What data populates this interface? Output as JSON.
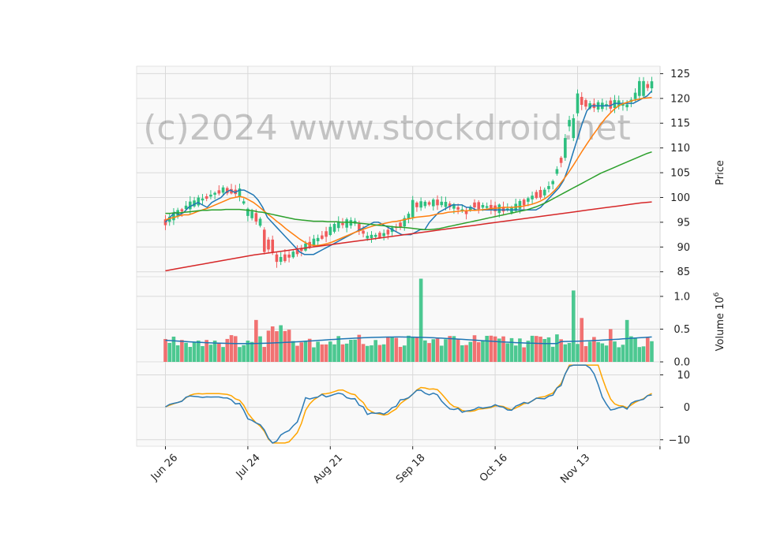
{
  "watermark": "(c)2024 www.stockdroid.net",
  "colors": {
    "up": "#2ebf7f",
    "down": "#f05b5b",
    "ma_short": "#1f77b4",
    "ma_mid": "#ff7f0e",
    "ma_long": "#2ca02c",
    "ma_xlong": "#d62728",
    "vol_ma": "#1f77b4",
    "osc_fast": "#2c7bb6",
    "osc_slow": "#ffa500"
  },
  "chart_data": [
    {
      "type": "candlestick",
      "ylabel": "Price",
      "ylim": [
        84,
        126.5
      ],
      "yticks": [
        85,
        90,
        95,
        100,
        105,
        110,
        115,
        120,
        125
      ],
      "xticks": [
        "Jun 26",
        "Jul 24",
        "Aug 21",
        "Sep 18",
        "Oct 16",
        "Nov 13"
      ],
      "series": [
        {
          "values": [
            95.0,
            96.0,
            97.0,
            96.5,
            97.0,
            98.0,
            98.5,
            99.0,
            98.5,
            98.0,
            99.0,
            99.5,
            100.0,
            101.0,
            101.5,
            101.0,
            101.5,
            101.5,
            101.0,
            100.5,
            99.5,
            98.0,
            96.0,
            95.0,
            94.0,
            93.0,
            92.0,
            91.0,
            90.0,
            89.0,
            88.5,
            88.5,
            88.5,
            89.0,
            89.5,
            90.0,
            90.5,
            91.0,
            91.5,
            92.0,
            92.5,
            93.0,
            93.5,
            94.0,
            94.5,
            95.0,
            95.0,
            94.5,
            94.0,
            93.5,
            93.0,
            92.5,
            92.5,
            92.5,
            93.0,
            93.5,
            93.5,
            95.0,
            96.0,
            97.0,
            97.5,
            98.0,
            98.5,
            98.5,
            98.5,
            98.0,
            98.0,
            97.5,
            97.5,
            97.5,
            97.5,
            97.5,
            97.5,
            97.5,
            97.5,
            97.5,
            97.5,
            97.5,
            97.5,
            97.5,
            97.5,
            98.0,
            99.0,
            100.0,
            101.0,
            102.0,
            103.5,
            106.0,
            109.0,
            112.0,
            115.0,
            117.5,
            118.5,
            118.5,
            118.5,
            118.5,
            118.5,
            119.0,
            119.0,
            119.0,
            119.0,
            119.0,
            119.5,
            120.0,
            120.5,
            121.5
          ]
        },
        {
          "values": [
            95.5,
            95.8,
            96.0,
            96.3,
            96.5,
            96.5,
            96.8,
            97.2,
            97.5,
            97.8,
            98.2,
            98.6,
            99.0,
            99.4,
            99.8,
            100.0,
            100.2,
            100.0,
            99.5,
            99.0,
            98.3,
            97.5,
            96.7,
            96.0,
            95.2,
            94.5,
            93.7,
            93.0,
            92.3,
            91.6,
            91.0,
            90.5,
            90.3,
            90.3,
            90.5,
            90.7,
            91.0,
            91.4,
            91.8,
            92.2,
            92.6,
            93.0,
            93.3,
            93.7,
            94.0,
            94.3,
            94.5,
            94.7,
            94.9,
            95.1,
            95.2,
            95.4,
            95.6,
            95.8,
            96.0,
            96.1,
            96.2,
            96.3,
            96.5,
            96.7,
            96.8,
            97.0,
            97.1,
            97.2,
            97.3,
            97.3,
            97.4,
            97.4,
            97.5,
            97.6,
            97.7,
            97.8,
            97.9,
            98.0,
            98.0,
            98.0,
            98.1,
            98.2,
            98.4,
            98.6,
            98.9,
            99.3,
            99.8,
            100.5,
            101.4,
            102.5,
            103.7,
            105.0,
            106.4,
            107.9,
            109.4,
            110.8,
            112.2,
            113.5,
            114.8,
            116.0,
            117.0,
            117.9,
            118.6,
            119.0,
            119.3,
            119.6,
            119.8,
            120.0,
            120.1,
            120.2
          ]
        },
        {
          "values": [
            96.8,
            96.8,
            96.9,
            96.9,
            97.0,
            97.1,
            97.2,
            97.3,
            97.4,
            97.4,
            97.5,
            97.5,
            97.5,
            97.6,
            97.6,
            97.6,
            97.6,
            97.5,
            97.4,
            97.3,
            97.1,
            97.0,
            96.8,
            96.6,
            96.4,
            96.2,
            96.0,
            95.8,
            95.6,
            95.5,
            95.4,
            95.3,
            95.2,
            95.2,
            95.2,
            95.1,
            95.1,
            95.1,
            95.0,
            95.0,
            95.0,
            94.9,
            94.8,
            94.7,
            94.6,
            94.5,
            94.4,
            94.3,
            94.2,
            94.1,
            94.0,
            94.0,
            93.9,
            93.8,
            93.7,
            93.6,
            93.5,
            93.5,
            93.6,
            93.7,
            93.9,
            94.1,
            94.3,
            94.5,
            94.7,
            94.9,
            95.1,
            95.3,
            95.5,
            95.7,
            95.9,
            96.1,
            96.3,
            96.5,
            96.7,
            96.9,
            97.1,
            97.3,
            97.5,
            97.8,
            98.1,
            98.5,
            98.9,
            99.4,
            99.9,
            100.4,
            100.9,
            101.4,
            101.9,
            102.4,
            102.9,
            103.4,
            103.9,
            104.4,
            104.9,
            105.3,
            105.7,
            106.1,
            106.5,
            106.9,
            107.3,
            107.7,
            108.1,
            108.5,
            108.9,
            109.2
          ]
        },
        {
          "values": [
            85.2,
            85.6,
            86.0,
            86.4,
            86.8,
            87.2,
            87.6,
            88.0,
            88.4,
            88.7,
            89.0,
            89.3,
            89.6,
            89.9,
            90.2,
            90.5,
            90.8,
            91.1,
            91.4,
            91.7,
            92.0,
            92.3,
            92.6,
            92.9,
            93.2,
            93.5,
            93.8,
            94.1,
            94.4,
            94.7,
            95.0,
            95.3,
            95.6,
            95.9,
            96.2,
            96.5,
            96.8,
            97.1,
            97.4,
            97.7,
            98.0,
            98.3,
            98.6,
            98.9,
            99.1
          ]
        }
      ]
    },
    {
      "type": "bar",
      "ylabel": "Volume",
      "unit": "10^6",
      "ylim": [
        0,
        1.3
      ],
      "yticks": [
        0.0,
        0.5,
        1.0
      ]
    },
    {
      "type": "line",
      "ylim": [
        -12,
        14
      ],
      "yticks": [
        -10,
        0,
        10
      ]
    }
  ]
}
